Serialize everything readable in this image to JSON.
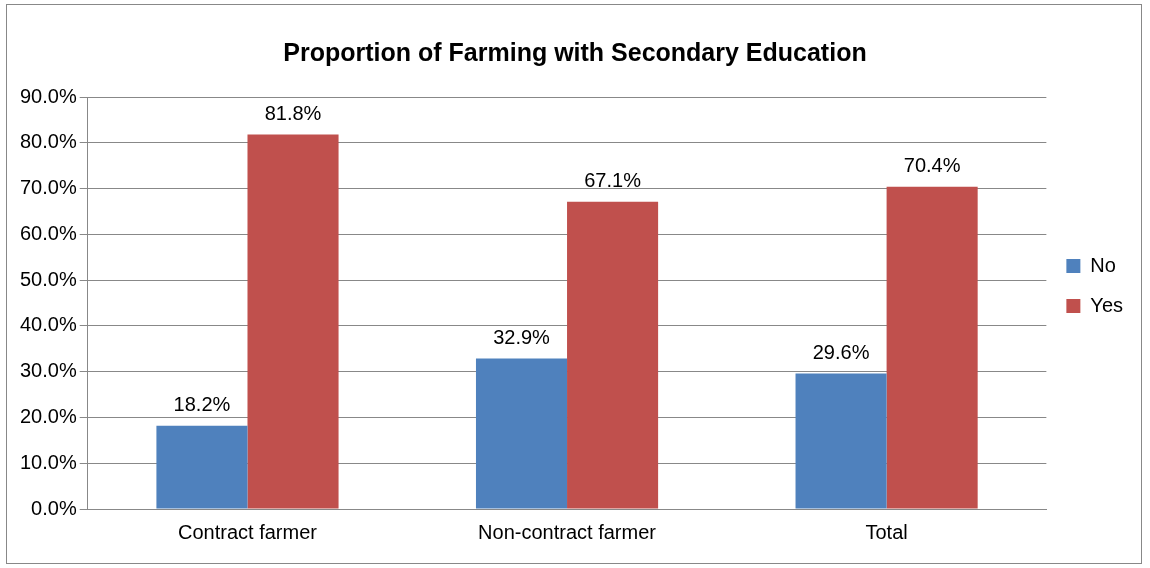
{
  "chart_data": {
    "type": "bar",
    "title": "Proportion of Farming with Secondary Education",
    "categories": [
      "Contract farmer",
      "Non-contract farmer",
      "Total"
    ],
    "series": [
      {
        "name": "No",
        "color": "#4f81bd",
        "values": [
          18.2,
          32.9,
          29.6
        ],
        "value_labels": [
          "18.2%",
          "32.9%",
          "29.6%"
        ]
      },
      {
        "name": "Yes",
        "color": "#c0504d",
        "values": [
          81.8,
          67.1,
          70.4
        ],
        "value_labels": [
          "81.8%",
          "67.1%",
          "70.4%"
        ]
      }
    ],
    "ylim": [
      0,
      90
    ],
    "yticks": [
      {
        "value": 0,
        "label": "0.0%"
      },
      {
        "value": 10,
        "label": "10.0%"
      },
      {
        "value": 20,
        "label": "20.0%"
      },
      {
        "value": 30,
        "label": "30.0%"
      },
      {
        "value": 40,
        "label": "40.0%"
      },
      {
        "value": 50,
        "label": "50.0%"
      },
      {
        "value": 60,
        "label": "60.0%"
      },
      {
        "value": 70,
        "label": "70.0%"
      },
      {
        "value": 80,
        "label": "80.0%"
      },
      {
        "value": 90,
        "label": "90.0%"
      }
    ],
    "grid": "y",
    "legend": "right"
  }
}
